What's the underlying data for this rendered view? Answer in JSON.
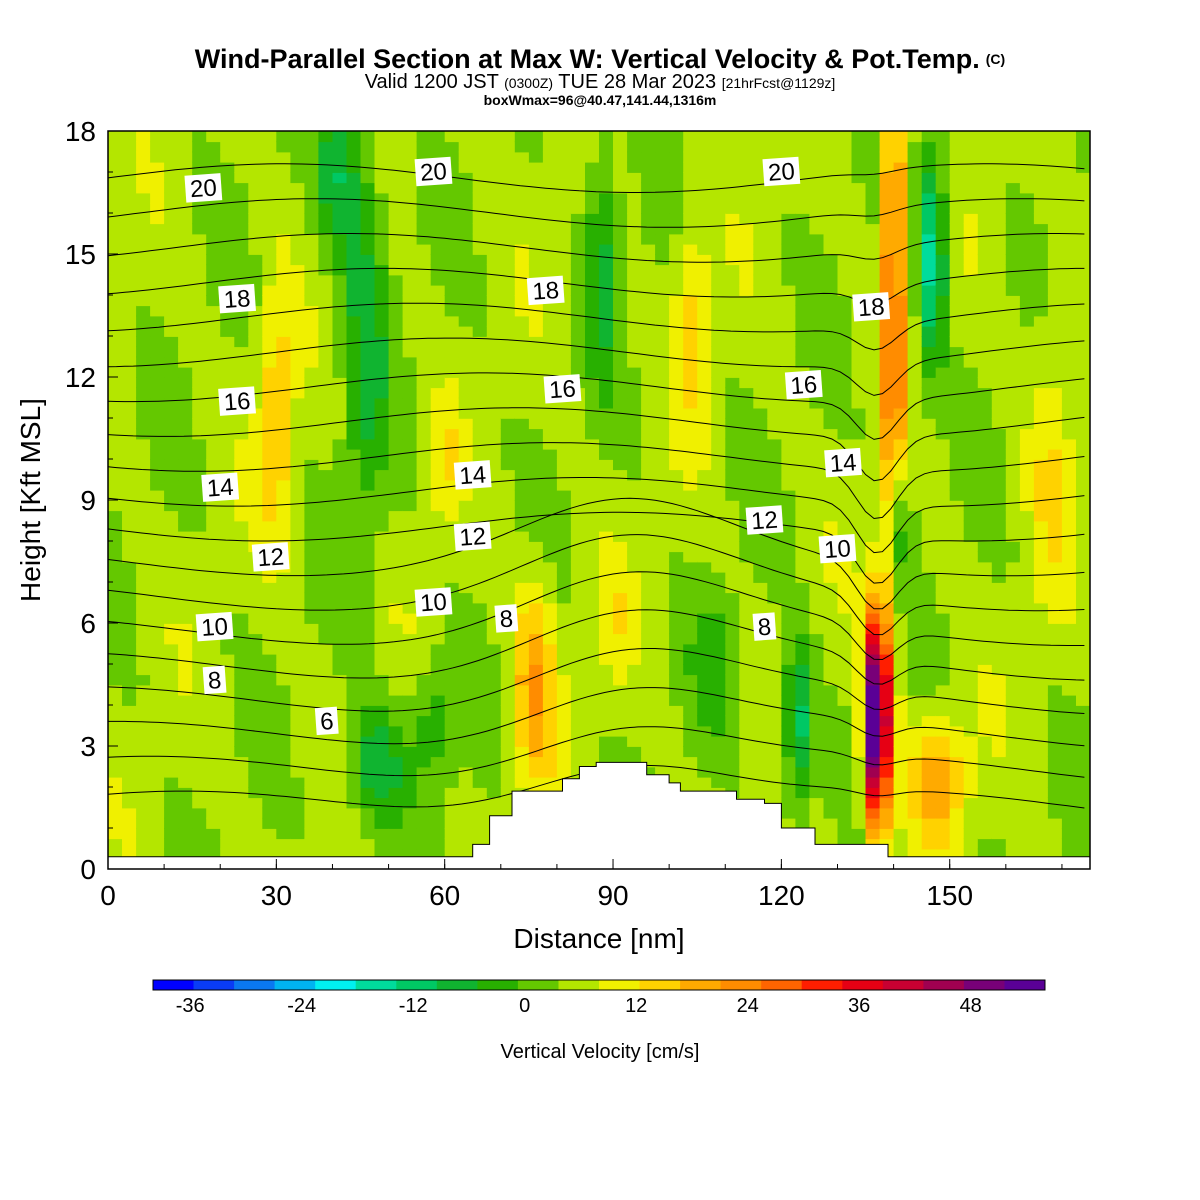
{
  "title": {
    "main": "Wind-Parallel Section at Max W: Vertical Velocity & Pot.Temp.",
    "mark": "(C)",
    "valid_prefix": "Valid 1200 JST",
    "valid_z": "(0300Z)",
    "valid_date": "TUE 28 Mar 2023",
    "forecast": "[21hrFcst@1129z]",
    "box": "boxWmax=96@40.47,141.44,1316m"
  },
  "chart_data": {
    "type": "heatmap",
    "xlabel": "Distance [nm]",
    "ylabel": "Height [Kft MSL]",
    "xlim": [
      0,
      175
    ],
    "ylim": [
      0,
      18
    ],
    "x_ticks": [
      0,
      30,
      60,
      90,
      120,
      150
    ],
    "y_ticks": [
      0,
      3,
      6,
      9,
      12,
      15,
      18
    ],
    "colorbar": {
      "label": "Vertical Velocity [cm/s]",
      "min": -40,
      "max": 56,
      "step": 4,
      "ticks": [
        -36,
        -24,
        -12,
        0,
        12,
        24,
        36,
        48
      ],
      "colors": [
        "#0000ff",
        "#0a3cf5",
        "#0a78f0",
        "#00b4f0",
        "#00f0f0",
        "#00dc9c",
        "#00c864",
        "#10b430",
        "#28b000",
        "#64c800",
        "#b4e600",
        "#f0f000",
        "#ffd200",
        "#ffaa00",
        "#ff8c00",
        "#ff6400",
        "#ff1e00",
        "#e60014",
        "#c80032",
        "#a00050",
        "#780078",
        "#5a0096"
      ]
    },
    "theta_contour_labels": [
      {
        "value": "20",
        "x": 17,
        "z": 16.6
      },
      {
        "value": "20",
        "x": 58,
        "z": 17.0
      },
      {
        "value": "20",
        "x": 120,
        "z": 17.0
      },
      {
        "value": "18",
        "x": 23,
        "z": 13.9
      },
      {
        "value": "18",
        "x": 78,
        "z": 14.1
      },
      {
        "value": "18",
        "x": 136,
        "z": 13.7
      },
      {
        "value": "16",
        "x": 23,
        "z": 11.4
      },
      {
        "value": "16",
        "x": 81,
        "z": 11.7
      },
      {
        "value": "16",
        "x": 124,
        "z": 11.8
      },
      {
        "value": "14",
        "x": 20,
        "z": 9.3
      },
      {
        "value": "14",
        "x": 65,
        "z": 9.6
      },
      {
        "value": "14",
        "x": 131,
        "z": 9.9
      },
      {
        "value": "12",
        "x": 29,
        "z": 7.6
      },
      {
        "value": "12",
        "x": 65,
        "z": 8.1
      },
      {
        "value": "12",
        "x": 117,
        "z": 8.5
      },
      {
        "value": "10",
        "x": 19,
        "z": 5.9
      },
      {
        "value": "10",
        "x": 58,
        "z": 6.5
      },
      {
        "value": "10",
        "x": 130,
        "z": 7.8
      },
      {
        "value": "8",
        "x": 19,
        "z": 4.6
      },
      {
        "value": "8",
        "x": 71,
        "z": 6.1
      },
      {
        "value": "8",
        "x": 117,
        "z": 5.9
      },
      {
        "value": "6",
        "x": 39,
        "z": 3.6
      }
    ],
    "terrain_profile": [
      [
        0,
        0.3
      ],
      [
        65,
        0.3
      ],
      [
        65,
        0.6
      ],
      [
        68,
        0.6
      ],
      [
        68,
        1.3
      ],
      [
        72,
        1.3
      ],
      [
        72,
        1.9
      ],
      [
        81,
        1.9
      ],
      [
        81,
        2.2
      ],
      [
        84,
        2.2
      ],
      [
        84,
        2.5
      ],
      [
        87,
        2.5
      ],
      [
        87,
        2.6
      ],
      [
        96,
        2.6
      ],
      [
        96,
        2.3
      ],
      [
        100,
        2.3
      ],
      [
        100,
        2.1
      ],
      [
        102,
        2.1
      ],
      [
        102,
        1.9
      ],
      [
        112,
        1.9
      ],
      [
        112,
        1.7
      ],
      [
        117,
        1.7
      ],
      [
        117,
        1.6
      ],
      [
        120,
        1.6
      ],
      [
        120,
        1.0
      ],
      [
        126,
        1.0
      ],
      [
        126,
        0.6
      ],
      [
        139,
        0.6
      ],
      [
        139,
        0.3
      ],
      [
        175,
        0.3
      ]
    ]
  }
}
